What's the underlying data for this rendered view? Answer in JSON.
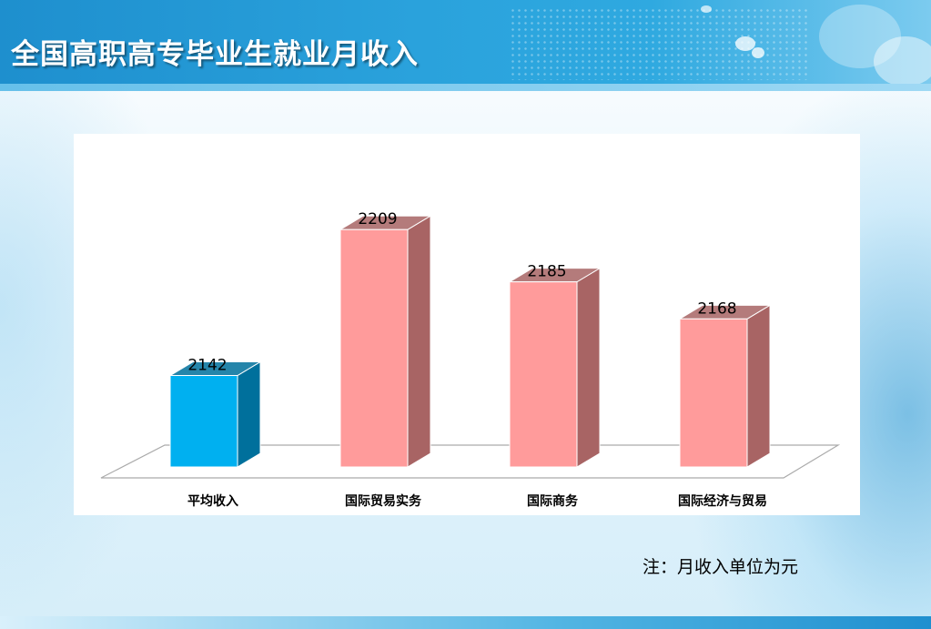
{
  "slide": {
    "title": "全国高职高专毕业生就业月收入",
    "note": "注：月收入单位为元"
  },
  "colors": {
    "highlight_front": "#00b0f0",
    "highlight_side": "#00709c",
    "bar_front": "#ff9b9b",
    "bar_side": "#a86464",
    "header": "#2aa2dc"
  },
  "chart_data": {
    "type": "bar",
    "title": "",
    "xlabel": "",
    "ylabel": "",
    "categories": [
      "平均收入",
      "国际贸易实务",
      "国际商务",
      "国际经济与贸易"
    ],
    "values": [
      2142,
      2209,
      2185,
      2168
    ],
    "highlight_index": 0,
    "ylim": [
      2100,
      2230
    ],
    "grid": false,
    "legend": false,
    "style": "3d-column"
  }
}
